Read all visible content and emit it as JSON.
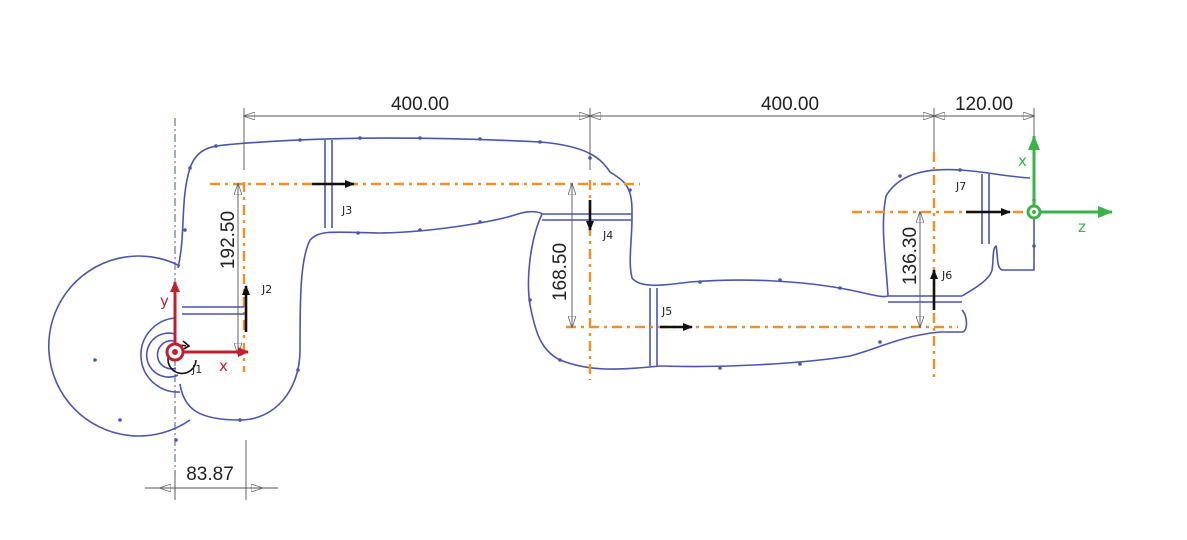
{
  "dimensions": {
    "top_1": "400.00",
    "top_2": "400.00",
    "top_3": "120.00",
    "bottom": "83.87",
    "vertical_1": "192.50",
    "vertical_2": "168.50",
    "vertical_3": "136.30"
  },
  "joints": {
    "j1": "J1",
    "j2": "J2",
    "j3": "J3",
    "j4": "J4",
    "j5": "J5",
    "j6": "J6",
    "j7": "J7"
  },
  "base_frame": {
    "x_label": "x",
    "y_label": "y",
    "color": "#c0202e"
  },
  "tool_frame": {
    "x_label": "x",
    "z_label": "z",
    "color": "#3cb34a"
  },
  "colors": {
    "outline": "#4a55b0",
    "centerline": "#f0902a",
    "dimension": "#555555",
    "joint_arrow": "#111111"
  }
}
